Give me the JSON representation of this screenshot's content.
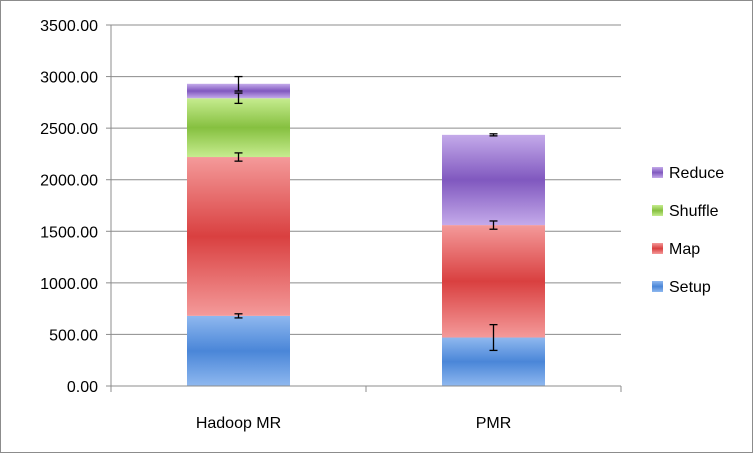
{
  "chart_data": {
    "type": "bar",
    "stacked": true,
    "categories": [
      "Hadoop MR",
      "PMR"
    ],
    "series": [
      {
        "name": "Setup",
        "values": [
          680,
          470
        ],
        "error": [
          20,
          125
        ],
        "color": "#4a86d8",
        "color_light": "#8fb8ef"
      },
      {
        "name": "Map",
        "values": [
          1540,
          1090
        ],
        "error": [
          40,
          40
        ],
        "color": "#d94040",
        "color_light": "#f49a9a"
      },
      {
        "name": "Shuffle",
        "values": [
          570,
          0
        ],
        "error": [
          50,
          0
        ],
        "color": "#86c040",
        "color_light": "#c6ec8f"
      },
      {
        "name": "Reduce",
        "values": [
          140,
          875
        ],
        "error": [
          70,
          10
        ],
        "color": "#8058bf",
        "color_light": "#c4aaea"
      }
    ],
    "yticks": [
      "0.00",
      "500.00",
      "1000.00",
      "1500.00",
      "2000.00",
      "2500.00",
      "3000.00",
      "3500.00"
    ],
    "ylim": [
      0,
      3500
    ],
    "grid": true,
    "legend_position": "right",
    "legend_order": [
      "Reduce",
      "Shuffle",
      "Map",
      "Setup"
    ]
  }
}
